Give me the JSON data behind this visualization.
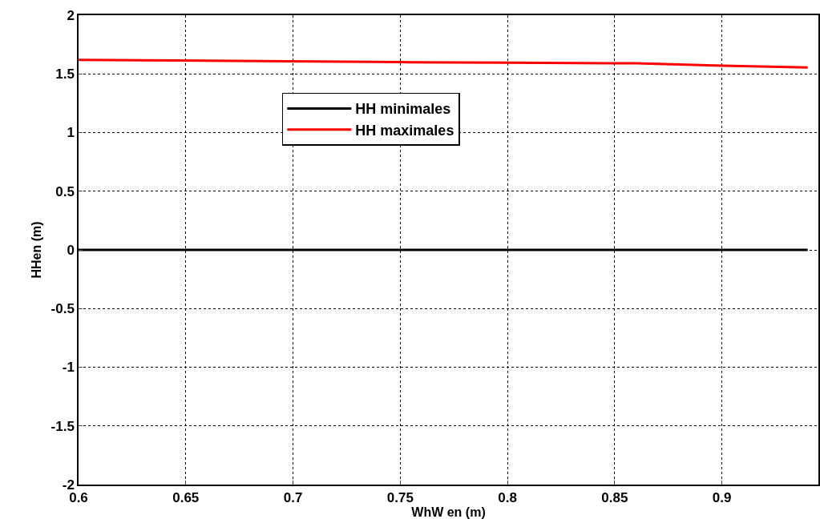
{
  "chart_data": {
    "type": "line",
    "xlabel": "WhW en (m)",
    "ylabel": "HHen (m)",
    "series": [
      {
        "name": "HH minimales",
        "color": "#000000",
        "x": [
          0.6,
          0.94
        ],
        "values": [
          0,
          0
        ]
      },
      {
        "name": "HH maximales",
        "color": "#ff0000",
        "x": [
          0.6,
          0.75,
          0.8,
          0.86,
          0.9,
          0.94
        ],
        "values": [
          1.62,
          1.6,
          1.595,
          1.59,
          1.57,
          1.555
        ]
      }
    ],
    "xlim": [
      0.6,
      0.945
    ],
    "xticks": [
      0.6,
      0.65,
      0.7,
      0.75,
      0.8,
      0.85,
      0.9
    ],
    "ylim": [
      -2,
      2
    ],
    "yticks": [
      -2,
      -1.5,
      -1,
      -0.5,
      0,
      0.5,
      1,
      1.5,
      2
    ],
    "grid": true,
    "legend": "top",
    "marker": "none",
    "line_style": "solid"
  }
}
